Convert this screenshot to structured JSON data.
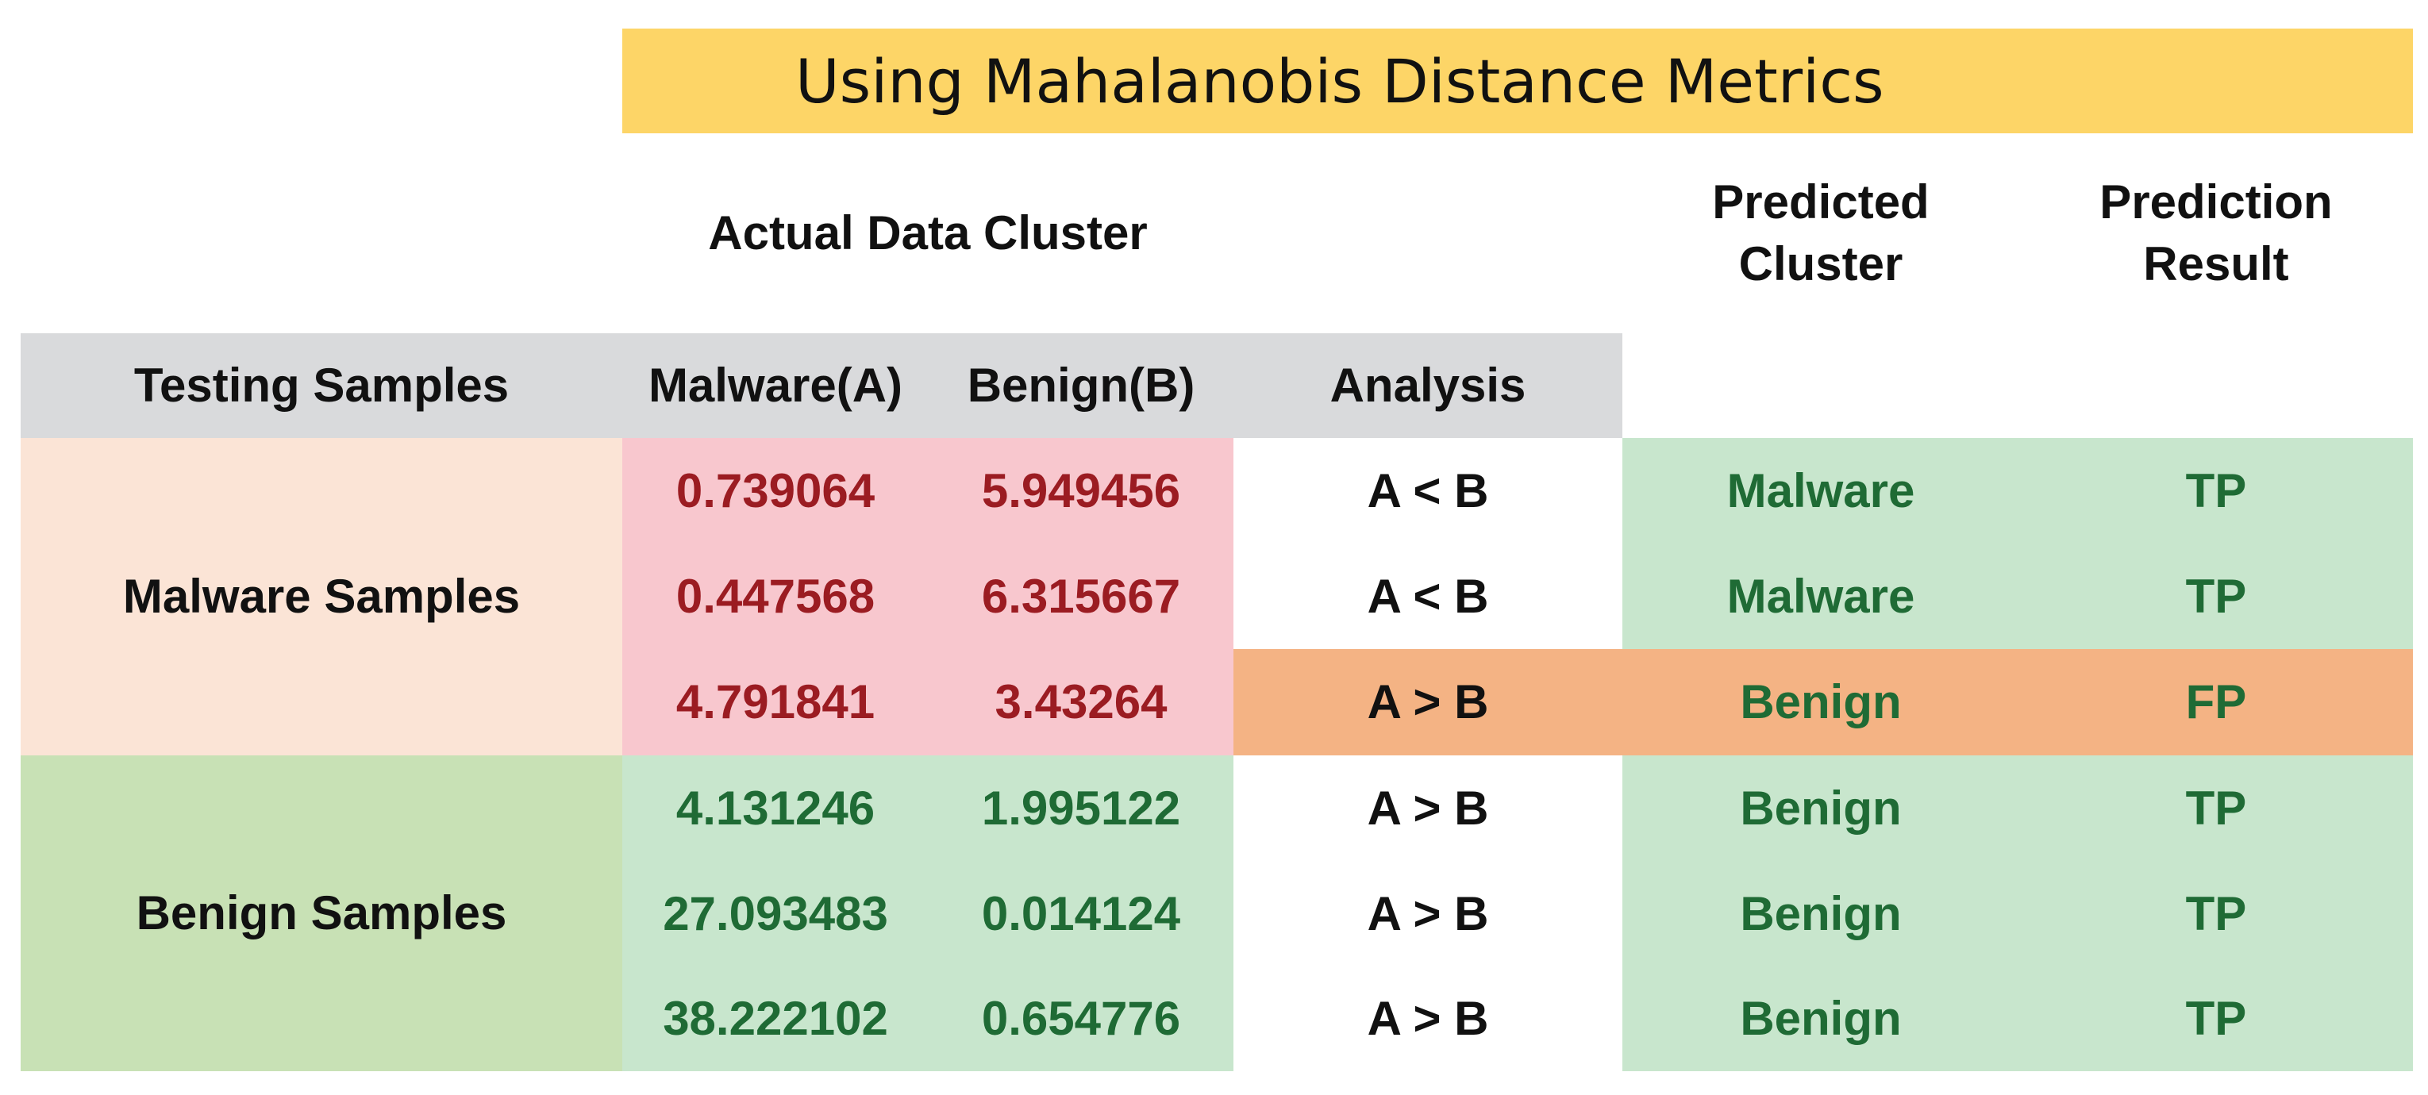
{
  "title": "Using Mahalanobis Distance Metrics",
  "headers": {
    "actual_cluster": "Actual Data Cluster",
    "predicted_cluster": "Predicted\nCluster",
    "prediction_result": "Prediction\nResult",
    "testing_samples": "Testing Samples",
    "malware_a": "Malware(A)",
    "benign_b": "Benign(B)",
    "analysis": "Analysis"
  },
  "groups": {
    "malware": "Malware Samples",
    "benign": "Benign Samples"
  },
  "rows": [
    {
      "a": "0.739064",
      "b": "5.949456",
      "analysis": "A < B",
      "predicted": "Malware",
      "result": "TP"
    },
    {
      "a": "0.447568",
      "b": "6.315667",
      "analysis": "A < B",
      "predicted": "Malware",
      "result": "TP"
    },
    {
      "a": "4.791841",
      "b": "3.43264",
      "analysis": "A > B",
      "predicted": "Benign",
      "result": "FP"
    },
    {
      "a": "4.131246",
      "b": "1.995122",
      "analysis": "A > B",
      "predicted": "Benign",
      "result": "TP"
    },
    {
      "a": "27.093483",
      "b": "0.014124",
      "analysis": "A > B",
      "predicted": "Benign",
      "result": "TP"
    },
    {
      "a": "38.222102",
      "b": "0.654776",
      "analysis": "A > B",
      "predicted": "Benign",
      "result": "TP"
    }
  ],
  "colors": {
    "title_bg": "#fdd567",
    "header_gray": "#d9dadc",
    "malware_group_bg": "#fbe4d6",
    "malware_values_bg": "#f8c7ce",
    "benign_group_bg": "#c8e1b5",
    "tp_bg": "#c8e6cd",
    "fp_bg": "#f4b384",
    "red_text": "#9b1c22",
    "green_text": "#1f6b35"
  }
}
